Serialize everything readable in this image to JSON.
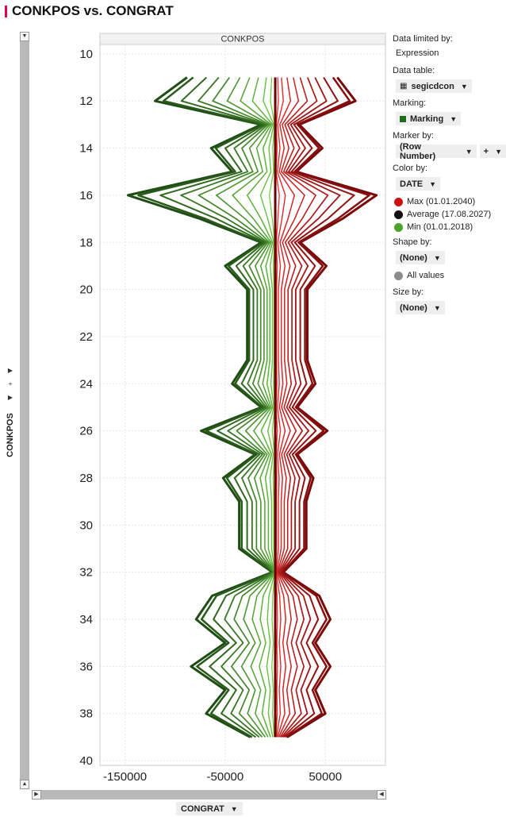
{
  "title": "CONKPOS vs. CONGRAT",
  "panel": {
    "name": "CONKPOS",
    "x_axis_button": "CONGRAT",
    "y_axis_label": "CONKPOS"
  },
  "legend": {
    "data_limited_label": "Data limited by:",
    "data_limited_value": "Expression",
    "data_table_label": "Data table:",
    "data_table_value": "segicdcon",
    "marking_label": "Marking:",
    "marking_value": "Marking",
    "marker_by_label": "Marker by:",
    "marker_by_value": "(Row Number)",
    "marker_by_extra": "+",
    "color_by_label": "Color by:",
    "color_by_value": "DATE",
    "color_items": [
      {
        "label": "Max (01.01.2040)",
        "color": "#cc1111"
      },
      {
        "label": "Average (17.08.2027)",
        "color": "#111111"
      },
      {
        "label": "Min (01.01.2018)",
        "color": "#4aa32a"
      }
    ],
    "shape_by_label": "Shape by:",
    "shape_by_value": "(None)",
    "shape_items": [
      {
        "label": "All values",
        "color": "#8c8c8c"
      }
    ],
    "size_by_label": "Size by:",
    "size_by_value": "(None)"
  },
  "chart_data": {
    "type": "line",
    "title": "CONKPOS vs. CONGRAT",
    "xlabel": "CONGRAT",
    "ylabel": "CONKPOS",
    "xlim": [
      -175000,
      110000
    ],
    "ylim": [
      40.2,
      9.6
    ],
    "x_ticks": [
      -150000,
      -50000,
      50000
    ],
    "x_tick_labels": [
      "-150000",
      "-50000",
      "50000"
    ],
    "y_ticks": [
      10,
      12,
      14,
      16,
      18,
      20,
      22,
      24,
      26,
      28,
      30,
      32,
      34,
      36,
      38,
      40
    ],
    "y_tick_labels": [
      "10",
      "12",
      "14",
      "16",
      "18",
      "20",
      "22",
      "24",
      "26",
      "28",
      "30",
      "32",
      "34",
      "36",
      "38",
      "40"
    ],
    "grid": true,
    "y": [
      11,
      12,
      13,
      14,
      15,
      16,
      17,
      18,
      19,
      20,
      21,
      22,
      23,
      24,
      25,
      26,
      27,
      28,
      29,
      30,
      31,
      32,
      33,
      34,
      35,
      36,
      37,
      38,
      39
    ],
    "green_extreme": [
      -88000,
      -120000,
      -14000,
      -64000,
      -43000,
      -147000,
      -75000,
      -14000,
      -50000,
      -28000,
      -28000,
      -28000,
      -28000,
      -43000,
      -14000,
      -74000,
      -20000,
      -52000,
      -36000,
      -36000,
      -36000,
      -3000,
      -63000,
      -79000,
      -50000,
      -84000,
      -50000,
      -69000,
      -25000
    ],
    "red_extreme": [
      62000,
      80000,
      24000,
      47000,
      21000,
      101000,
      67000,
      25000,
      51000,
      32000,
      32000,
      32000,
      32000,
      40000,
      22000,
      52000,
      22000,
      38000,
      31000,
      31000,
      31000,
      8000,
      44000,
      55000,
      40000,
      55000,
      40000,
      50000,
      12000
    ],
    "center_line": {
      "x": 0,
      "color": "#6b0000"
    },
    "series": [
      {
        "name": "Max (01.01.2040)",
        "color": "#cc1111"
      },
      {
        "name": "Average (17.08.2027)",
        "color": "#111111"
      },
      {
        "name": "Min (01.01.2018)",
        "color": "#4aa32a"
      }
    ]
  }
}
